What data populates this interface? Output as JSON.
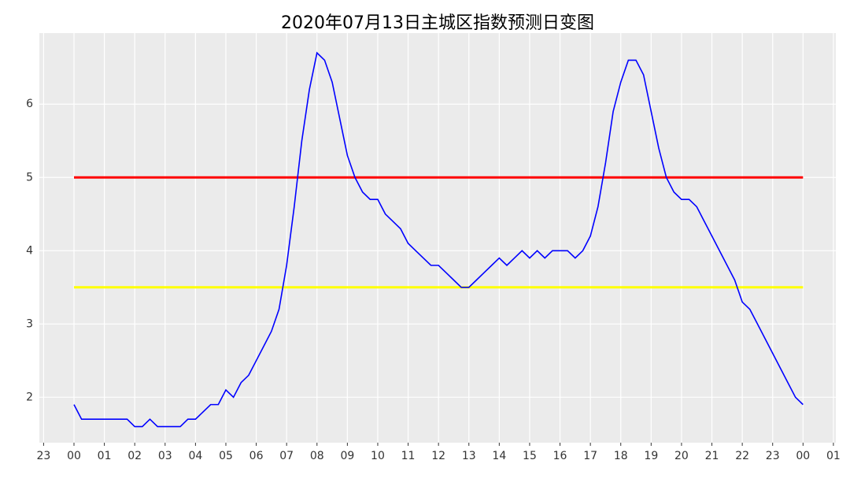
{
  "chart_data": {
    "type": "line",
    "title": "2020年07月13日主城区指数预测日变图",
    "x": [
      0,
      0.25,
      0.5,
      0.75,
      1,
      1.25,
      1.5,
      1.75,
      2,
      2.25,
      2.5,
      2.75,
      3,
      3.25,
      3.5,
      3.75,
      4,
      4.25,
      4.5,
      4.75,
      5,
      5.25,
      5.5,
      5.75,
      6,
      6.25,
      6.5,
      6.75,
      7,
      7.25,
      7.5,
      7.75,
      8,
      8.25,
      8.5,
      8.75,
      9,
      9.25,
      9.5,
      9.75,
      10,
      10.25,
      10.5,
      10.75,
      11,
      11.25,
      11.5,
      11.75,
      12,
      12.25,
      12.5,
      12.75,
      13,
      13.25,
      13.5,
      13.75,
      14,
      14.25,
      14.5,
      14.75,
      15,
      15.25,
      15.5,
      15.75,
      16,
      16.25,
      16.5,
      16.75,
      17,
      17.25,
      17.5,
      17.75,
      18,
      18.25,
      18.5,
      18.75,
      19,
      19.25,
      19.5,
      19.75,
      20,
      20.25,
      20.5,
      20.75,
      21,
      21.25,
      21.5,
      21.75,
      22,
      22.25,
      22.5,
      22.75,
      23,
      23.25,
      23.5,
      23.75,
      24
    ],
    "series": [
      {
        "color": "#0000ff",
        "values": [
          1.9,
          1.7,
          1.7,
          1.7,
          1.7,
          1.7,
          1.7,
          1.7,
          1.6,
          1.6,
          1.7,
          1.6,
          1.6,
          1.6,
          1.6,
          1.7,
          1.7,
          1.8,
          1.9,
          1.9,
          2.1,
          2.0,
          2.2,
          2.3,
          2.5,
          2.7,
          2.9,
          3.2,
          3.8,
          4.6,
          5.5,
          6.2,
          6.7,
          6.6,
          6.3,
          5.8,
          5.3,
          5.0,
          4.8,
          4.7,
          4.7,
          4.5,
          4.4,
          4.3,
          4.1,
          4.0,
          3.9,
          3.8,
          3.8,
          3.7,
          3.6,
          3.5,
          3.5,
          3.6,
          3.7,
          3.8,
          3.9,
          3.8,
          3.9,
          4.0,
          3.9,
          4.0,
          3.9,
          4.0,
          4.0,
          4.0,
          3.9,
          4.0,
          4.2,
          4.6,
          5.2,
          5.9,
          6.3,
          6.6,
          6.6,
          6.4,
          5.9,
          5.4,
          5.0,
          4.8,
          4.7,
          4.7,
          4.6,
          4.4,
          4.2,
          4.0,
          3.8,
          3.6,
          3.3,
          3.2,
          3.0,
          2.8,
          2.6,
          2.4,
          2.2,
          2.0,
          1.9
        ]
      }
    ],
    "reference_lines": [
      {
        "value": 5,
        "color": "#ff0000",
        "width": 3
      },
      {
        "value": 3.5,
        "color": "#ffff00",
        "width": 3
      }
    ],
    "xlim": [
      -1.14,
      25.08
    ],
    "ylim": [
      1.38,
      6.97
    ],
    "xticks": [
      {
        "value": -1,
        "label": "23"
      },
      {
        "value": 0,
        "label": "00"
      },
      {
        "value": 1,
        "label": "01"
      },
      {
        "value": 2,
        "label": "02"
      },
      {
        "value": 3,
        "label": "03"
      },
      {
        "value": 4,
        "label": "04"
      },
      {
        "value": 5,
        "label": "05"
      },
      {
        "value": 6,
        "label": "06"
      },
      {
        "value": 7,
        "label": "07"
      },
      {
        "value": 8,
        "label": "08"
      },
      {
        "value": 9,
        "label": "09"
      },
      10,
      11,
      12,
      13,
      14,
      15,
      16,
      17,
      18,
      19,
      20,
      21,
      22,
      23,
      {
        "value": 24,
        "label": "00"
      },
      {
        "value": 25,
        "label": "01"
      }
    ],
    "yticks": [
      2,
      3,
      4,
      5,
      6
    ],
    "grid": true
  }
}
